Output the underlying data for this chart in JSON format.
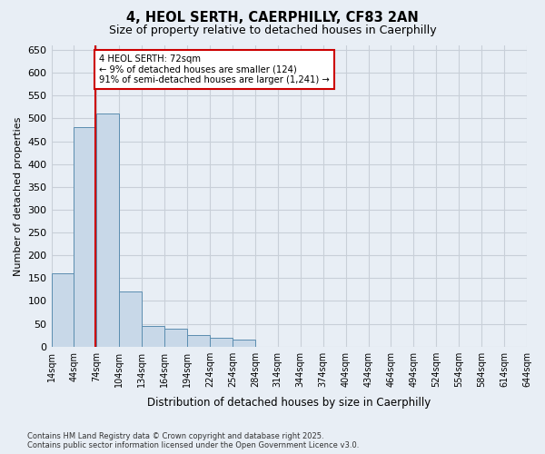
{
  "title1": "4, HEOL SERTH, CAERPHILLY, CF83 2AN",
  "title2": "Size of property relative to detached houses in Caerphilly",
  "xlabel": "Distribution of detached houses by size in Caerphilly",
  "ylabel": "Number of detached properties",
  "footnote": "Contains HM Land Registry data © Crown copyright and database right 2025.\nContains public sector information licensed under the Open Government Licence v3.0.",
  "bin_edges": [
    14,
    44,
    74,
    104,
    134,
    164,
    194,
    224,
    254,
    284,
    314,
    344,
    374,
    404,
    434,
    464,
    494,
    524,
    554,
    584,
    614,
    644
  ],
  "bar_heights": [
    160,
    480,
    510,
    120,
    45,
    40,
    25,
    20,
    15,
    0,
    0,
    0,
    0,
    0,
    0,
    0,
    0,
    0,
    0,
    0,
    0
  ],
  "bar_color": "#c8d8e8",
  "bar_edge_color": "#5b8db0",
  "property_size": 72,
  "red_line_color": "#cc0000",
  "annotation_text": "4 HEOL SERTH: 72sqm\n← 9% of detached houses are smaller (124)\n91% of semi-detached houses are larger (1,241) →",
  "annotation_box_color": "#ffffff",
  "annotation_border_color": "#cc0000",
  "ylim": [
    0,
    660
  ],
  "yticks": [
    0,
    50,
    100,
    150,
    200,
    250,
    300,
    350,
    400,
    450,
    500,
    550,
    600,
    650
  ],
  "bg_color": "#e8eef5",
  "grid_color": "#c8cfd8"
}
